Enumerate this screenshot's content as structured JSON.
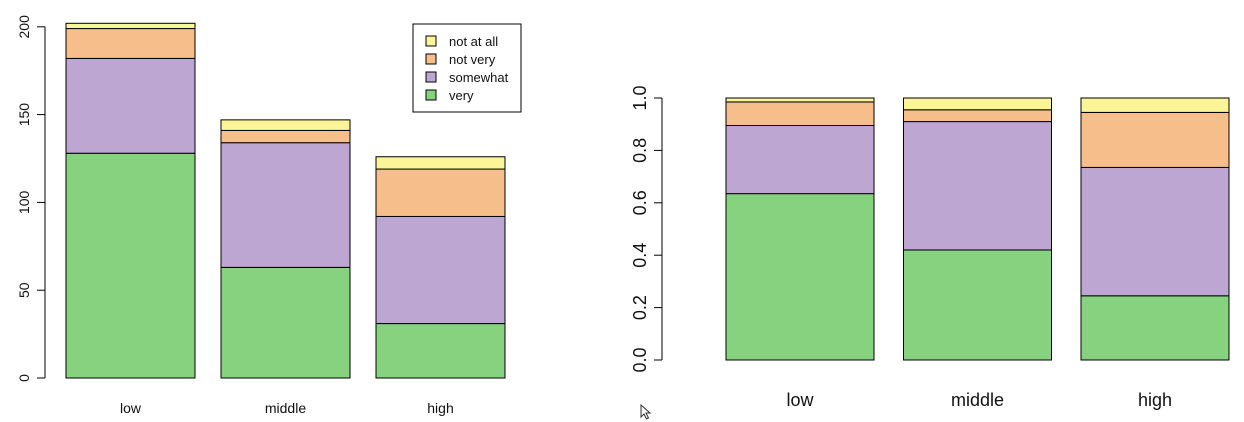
{
  "chart_data": [
    {
      "type": "bar",
      "stacked": true,
      "categories": [
        "low",
        "middle",
        "high"
      ],
      "series": [
        {
          "name": "very",
          "values": [
            128,
            63,
            31
          ],
          "color": "#86D27F"
        },
        {
          "name": "somewhat",
          "values": [
            54,
            71,
            61
          ],
          "color": "#BDA7D2"
        },
        {
          "name": "not very",
          "values": [
            17,
            7,
            27
          ],
          "color": "#F6BE8A"
        },
        {
          "name": "not at all",
          "values": [
            3,
            6,
            7
          ],
          "color": "#FBF59A"
        }
      ],
      "yticks": [
        "0",
        "50",
        "100",
        "150",
        "200"
      ],
      "ylim": [
        0,
        202
      ],
      "legend": {
        "position": "top-right",
        "entries": [
          "not at all",
          "not very",
          "somewhat",
          "very"
        ]
      }
    },
    {
      "type": "bar",
      "stacked": true,
      "categories": [
        "low",
        "middle",
        "high"
      ],
      "series": [
        {
          "name": "very",
          "values": [
            0.635,
            0.42,
            0.245
          ],
          "color": "#86D27F"
        },
        {
          "name": "somewhat",
          "values": [
            0.26,
            0.49,
            0.49
          ],
          "color": "#BDA7D2"
        },
        {
          "name": "not very",
          "values": [
            0.09,
            0.045,
            0.21
          ],
          "color": "#F6BE8A"
        },
        {
          "name": "not at all",
          "values": [
            0.015,
            0.045,
            0.055
          ],
          "color": "#FBF59A"
        }
      ],
      "yticks": [
        "0.0",
        "0.2",
        "0.4",
        "0.6",
        "0.8",
        "1.0"
      ],
      "ylim": [
        0,
        1
      ]
    }
  ]
}
